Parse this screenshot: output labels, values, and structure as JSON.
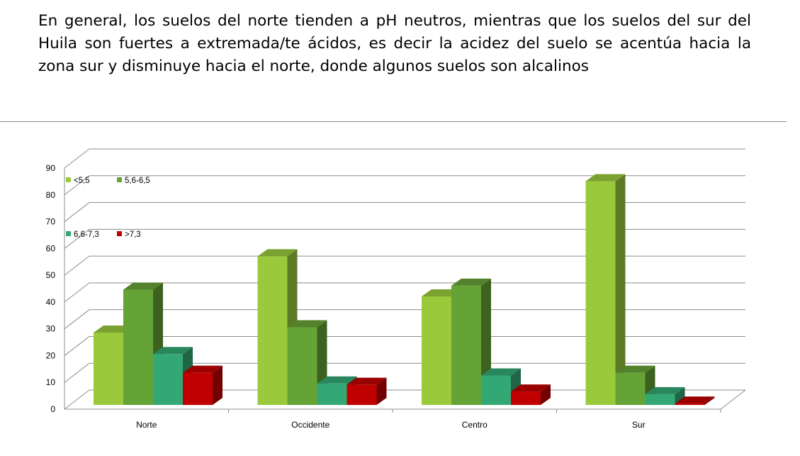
{
  "caption": "En general, los suelos del norte tienden a pH neutros, mientras que los suelos del sur del Huila son fuertes a extremada/te ácidos, es decir la acidez del suelo se acentúa hacia la zona sur y disminuye hacia el norte, donde algunos suelos son alcalinos",
  "chart_data": {
    "type": "bar",
    "style": "3d-clustered-column",
    "categories": [
      "Norte",
      "Occidente",
      "Centro",
      "Sur"
    ],
    "series": [
      {
        "name": "<5,5",
        "color": "#9ACA3C",
        "values": [
          27,
          55.5,
          40.5,
          83.5
        ]
      },
      {
        "name": "5,6-6,5",
        "color": "#66A336",
        "values": [
          43,
          29,
          44.5,
          12
        ]
      },
      {
        "name": "6,6-7,3",
        "color": "#34A874",
        "values": [
          19,
          8,
          11,
          4
        ]
      },
      {
        "name": ">7,3",
        "color": "#C00000",
        "values": [
          12,
          7.5,
          5,
          0.5
        ]
      }
    ],
    "yticks": [
      "0",
      "10",
      "20",
      "30",
      "40",
      "50",
      "60",
      "70",
      "80",
      "90"
    ],
    "ylim": [
      0,
      90
    ],
    "grid": true,
    "legend_placement": "top-left inside"
  }
}
